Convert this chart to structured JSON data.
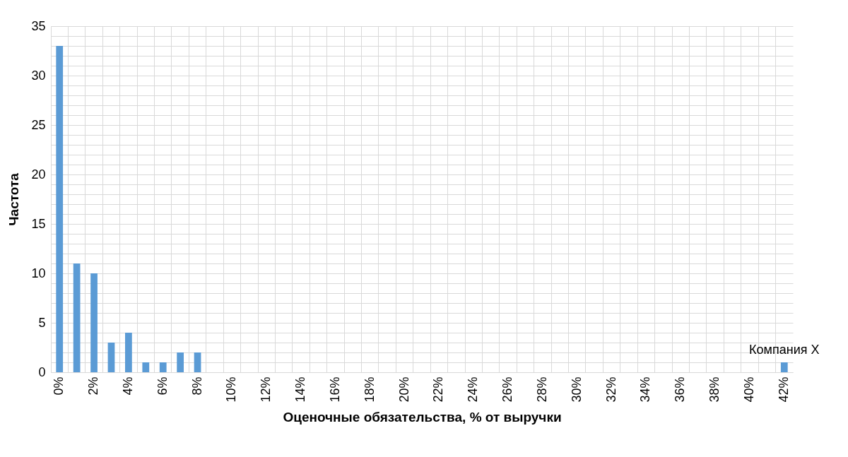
{
  "chart_data": {
    "type": "bar",
    "xlabel": "Оценочные обязательства, % от выручки",
    "ylabel": "Частота",
    "categories": [
      "0%",
      null,
      "2%",
      null,
      "4%",
      null,
      "6%",
      null,
      "8%",
      null,
      "10%",
      null,
      "12%",
      null,
      "14%",
      null,
      "16%",
      null,
      "18%",
      null,
      "20%",
      null,
      "22%",
      null,
      "24%",
      null,
      "26%",
      null,
      "28%",
      null,
      "30%",
      null,
      "32%",
      null,
      "34%",
      null,
      "36%",
      null,
      "38%",
      null,
      "40%",
      null,
      "42%"
    ],
    "values": [
      33,
      11,
      10,
      3,
      4,
      1,
      1,
      2,
      2,
      0,
      0,
      0,
      0,
      0,
      0,
      0,
      0,
      0,
      0,
      0,
      0,
      0,
      0,
      0,
      0,
      0,
      0,
      0,
      0,
      0,
      0,
      0,
      0,
      0,
      0,
      0,
      0,
      0,
      0,
      0,
      0,
      0,
      1
    ],
    "color": "#5b9bd5",
    "ylim": [
      0,
      35
    ],
    "yticks": [
      0,
      {
        "value": 1,
        "label": null
      },
      {
        "value": 2,
        "label": null
      },
      {
        "value": 3,
        "label": null
      },
      {
        "value": 4,
        "label": null
      },
      5,
      {
        "value": 6,
        "label": null
      },
      {
        "value": 7,
        "label": null
      },
      {
        "value": 8,
        "label": null
      },
      {
        "value": 9,
        "label": null
      },
      10,
      {
        "value": 11,
        "label": null
      },
      {
        "value": 12,
        "label": null
      },
      {
        "value": 13,
        "label": null
      },
      {
        "value": 14,
        "label": null
      },
      15,
      {
        "value": 16,
        "label": null
      },
      {
        "value": 17,
        "label": null
      },
      {
        "value": 18,
        "label": null
      },
      {
        "value": 19,
        "label": null
      },
      20,
      {
        "value": 21,
        "label": null
      },
      {
        "value": 22,
        "label": null
      },
      {
        "value": 23,
        "label": null
      },
      {
        "value": 24,
        "label": null
      },
      25,
      {
        "value": 26,
        "label": null
      },
      {
        "value": 27,
        "label": null
      },
      {
        "value": 28,
        "label": null
      },
      {
        "value": 29,
        "label": null
      },
      30,
      {
        "value": 31,
        "label": null
      },
      {
        "value": 32,
        "label": null
      },
      {
        "value": 33,
        "label": null
      },
      {
        "value": 34,
        "label": null
      },
      35
    ],
    "grid": true,
    "annotations": [
      {
        "text": "Компания X",
        "x": "42%",
        "y": 1
      }
    ]
  }
}
